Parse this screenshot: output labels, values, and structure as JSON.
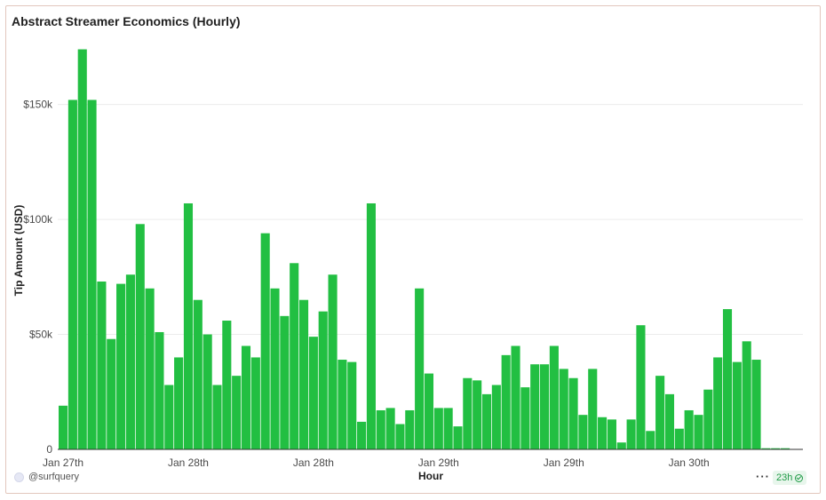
{
  "header": {
    "title": "Abstract Streamer Economics (Hourly)"
  },
  "footer": {
    "brand": "@surfquery",
    "more_label": "···",
    "freshness": "23h"
  },
  "colors": {
    "bar": "#22bf42",
    "grid": "#ececec",
    "axis": "#333333"
  },
  "chart_data": {
    "type": "bar",
    "xlabel": "Hour",
    "ylabel": "Tip Amount (USD)",
    "ylim": [
      0,
      180000
    ],
    "yticks": [
      {
        "value": 0,
        "label": "0"
      },
      {
        "value": 50000,
        "label": "$50k"
      },
      {
        "value": 100000,
        "label": "$100k"
      },
      {
        "value": 150000,
        "label": "$150k"
      }
    ],
    "xticks": [
      {
        "index": 0,
        "label": "Jan 27th"
      },
      {
        "index": 13,
        "label": "Jan 28th"
      },
      {
        "index": 26,
        "label": "Jan 28th"
      },
      {
        "index": 39,
        "label": "Jan 29th"
      },
      {
        "index": 52,
        "label": "Jan 29th"
      },
      {
        "index": 65,
        "label": "Jan 30th"
      }
    ],
    "grid": true,
    "legend": "none",
    "series": [
      {
        "values": [
          19000,
          152000,
          174000,
          152000,
          73000,
          48000,
          72000,
          76000,
          98000,
          70000,
          51000,
          28000,
          40000,
          107000,
          65000,
          50000,
          28000,
          56000,
          32000,
          45000,
          40000,
          94000,
          70000,
          58000,
          81000,
          65000,
          49000,
          60000,
          76000,
          39000,
          38000,
          12000,
          107000,
          17000,
          18000,
          11000,
          17000,
          70000,
          33000,
          18000,
          18000,
          10000,
          31000,
          30000,
          24000,
          28000,
          41000,
          45000,
          27000,
          37000,
          37000,
          45000,
          35000,
          31000,
          15000,
          35000,
          14000,
          13000,
          3000,
          13000,
          54000,
          8000,
          32000,
          24000,
          9000,
          17000,
          15000,
          26000,
          40000,
          61000,
          38000,
          47000,
          39000,
          500,
          500,
          500
        ]
      }
    ]
  }
}
